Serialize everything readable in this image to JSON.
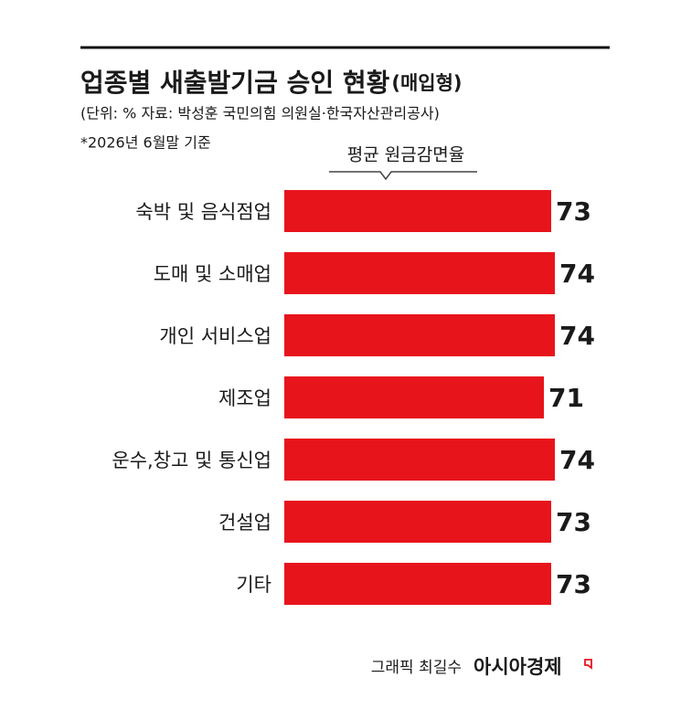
{
  "chart_data": {
    "type": "bar",
    "orientation": "horizontal",
    "title": "업종별 새출발기금 승인 현황",
    "title_note": "(매입형)",
    "source": "(단위: % 자료: 박성훈 국민의힘 의원실·한국자산관리공사)",
    "note": "*2026년 6월말 기준",
    "categories": [
      "숙박 및 음식점업",
      "도매 및 소매업",
      "개인 서비스업",
      "제조업",
      "운수,창고 및 통신업",
      "건설업",
      "기타"
    ],
    "series": [
      {
        "name": "평균 원금감면율",
        "color": "#e8141c",
        "values": [
          73,
          74,
          74,
          71,
          74,
          73,
          73
        ]
      }
    ],
    "credit": "그래픽 최길수",
    "brand": "아시아경제"
  }
}
